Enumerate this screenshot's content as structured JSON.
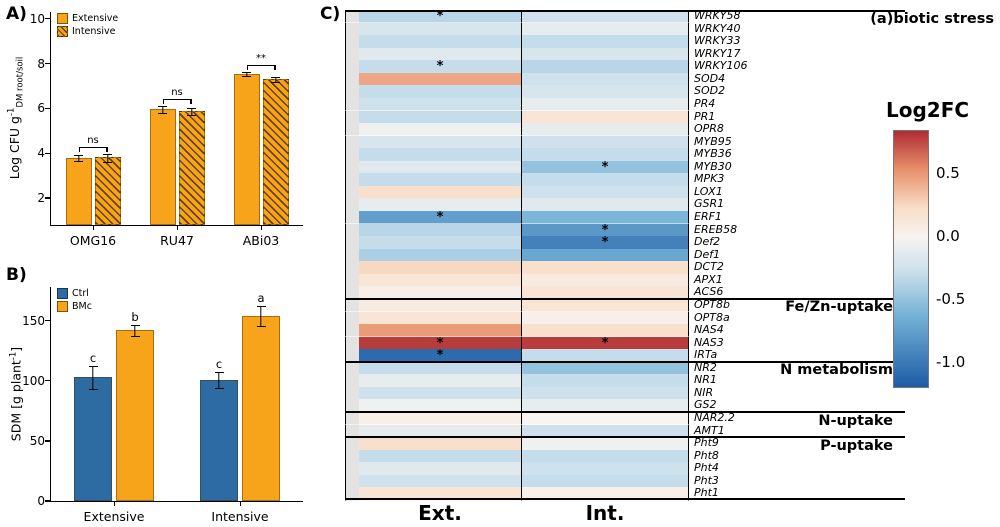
{
  "chart_data": [
    {
      "id": "A",
      "type": "bar",
      "panel_label": "A)",
      "ylabel": {
        "pre": "Log CFU g",
        "sup": "-1",
        "sub": "DM root/soil",
        "post": ""
      },
      "categories": [
        "OMG16",
        "RU47",
        "ABi03"
      ],
      "series": [
        {
          "name": "Extensive",
          "style": "solid",
          "color": "#F8A41B",
          "values": [
            3.8,
            5.98,
            7.55
          ],
          "errors": [
            0.12,
            0.12,
            0.07
          ]
        },
        {
          "name": "Intensive",
          "style": "hatched",
          "color": "#F8A41B",
          "values": [
            3.82,
            5.9,
            7.3
          ],
          "errors": [
            0.15,
            0.14,
            0.1
          ]
        }
      ],
      "significance": [
        "ns",
        "ns",
        "**"
      ],
      "ylim": [
        0.8,
        10.3
      ],
      "yticks": [
        10,
        8,
        6,
        4,
        2
      ]
    },
    {
      "id": "B",
      "type": "bar",
      "panel_label": "B)",
      "ylabel": {
        "pre": "SDM [g plant",
        "sup": "-1",
        "sub": "",
        "post": "]"
      },
      "categories": [
        "Extensive",
        "Intensive"
      ],
      "series": [
        {
          "name": "Ctrl",
          "style": "solid",
          "color": "#2D6CA2",
          "values": [
            103,
            101
          ],
          "errors": [
            9,
            6
          ],
          "letters": [
            "c",
            "c"
          ]
        },
        {
          "name": "BMc",
          "style": "solid",
          "color": "#F8A41B",
          "values": [
            142,
            154
          ],
          "errors": [
            4,
            8
          ],
          "letters": [
            "b",
            "a"
          ]
        }
      ],
      "significance": [],
      "ylim": [
        0,
        178
      ],
      "yticks": [
        0,
        50,
        100,
        150
      ]
    },
    {
      "id": "C",
      "type": "heatmap",
      "panel_label": "C)",
      "columns": [
        "Ext.",
        "Int."
      ],
      "colorbar": {
        "title": "Log2FC",
        "ticks": [
          "0.5",
          "0.0",
          "-0.5",
          "-1.0"
        ],
        "vmin": -1.2,
        "vmax": 0.85
      },
      "sections": [
        {
          "name": "(a)biotic stress",
          "genes": [
            {
              "gene": "WRKY58",
              "ext": -0.35,
              "int": -0.25,
              "sx": true
            },
            {
              "gene": "WRKY40",
              "ext": -0.2,
              "int": -0.1
            },
            {
              "gene": "WRKY33",
              "ext": -0.3,
              "int": -0.3
            },
            {
              "gene": "WRKY17",
              "ext": -0.15,
              "int": -0.2
            },
            {
              "gene": "WRKY106",
              "ext": -0.3,
              "int": -0.35,
              "sx": true
            },
            {
              "gene": "SOD4",
              "ext": 0.45,
              "int": -0.25
            },
            {
              "gene": "SOD2",
              "ext": -0.3,
              "int": -0.2
            },
            {
              "gene": "PR4",
              "ext": -0.25,
              "int": -0.1
            },
            {
              "gene": "PR1",
              "ext": -0.3,
              "int": 0.15
            },
            {
              "gene": "OPR8",
              "ext": -0.05,
              "int": -0.1
            },
            {
              "gene": "MYB95",
              "ext": -0.2,
              "int": -0.25
            },
            {
              "gene": "MYB36",
              "ext": -0.3,
              "int": -0.3
            },
            {
              "gene": "MYB30",
              "ext": -0.15,
              "int": -0.5,
              "si": true
            },
            {
              "gene": "MPK3",
              "ext": -0.3,
              "int": -0.3
            },
            {
              "gene": "LOX1",
              "ext": 0.2,
              "int": -0.25
            },
            {
              "gene": "GSR1",
              "ext": -0.1,
              "int": -0.15
            },
            {
              "gene": "ERF1",
              "ext": -0.75,
              "int": -0.6,
              "sx": true
            },
            {
              "gene": "EREB58",
              "ext": -0.35,
              "int": -0.8,
              "si": true
            },
            {
              "gene": "Def2",
              "ext": -0.3,
              "int": -0.95,
              "si": true
            },
            {
              "gene": "Def1",
              "ext": -0.4,
              "int": -0.7
            },
            {
              "gene": "DCT2",
              "ext": 0.25,
              "int": 0.2
            },
            {
              "gene": "APX1",
              "ext": 0.15,
              "int": 0.1
            },
            {
              "gene": "ACS6",
              "ext": 0.05,
              "int": 0.15
            }
          ]
        },
        {
          "name": "Fe/Zn-uptake",
          "genes": [
            {
              "gene": "OPT8b",
              "ext": 0.1,
              "int": 0.15
            },
            {
              "gene": "OPT8a",
              "ext": 0.15,
              "int": 0.05
            },
            {
              "gene": "NAS4",
              "ext": 0.5,
              "int": 0.2
            },
            {
              "gene": "NAS3",
              "ext": 0.8,
              "int": 0.8,
              "sx": true,
              "si": true
            },
            {
              "gene": "IRTa",
              "ext": -1.1,
              "int": -0.3,
              "sx": true
            }
          ]
        },
        {
          "name": "N metabolism",
          "genes": [
            {
              "gene": "NR2",
              "ext": -0.3,
              "int": -0.5
            },
            {
              "gene": "NR1",
              "ext": -0.1,
              "int": -0.3
            },
            {
              "gene": "NIR",
              "ext": -0.25,
              "int": -0.25
            },
            {
              "gene": "GS2",
              "ext": -0.05,
              "int": -0.1
            }
          ]
        },
        {
          "name": "N-uptake",
          "genes": [
            {
              "gene": "NAR2.2",
              "ext": 0.05,
              "int": 0.0
            },
            {
              "gene": "AMT1",
              "ext": -0.1,
              "int": -0.25
            }
          ]
        },
        {
          "name": "P-uptake",
          "genes": [
            {
              "gene": "Pht9",
              "ext": 0.2,
              "int": -0.05
            },
            {
              "gene": "Pht8",
              "ext": -0.3,
              "int": -0.3
            },
            {
              "gene": "Pht4",
              "ext": -0.15,
              "int": -0.25
            },
            {
              "gene": "Pht3",
              "ext": -0.25,
              "int": -0.3
            },
            {
              "gene": "Pht1",
              "ext": 0.15,
              "int": 0.05
            }
          ]
        }
      ]
    }
  ]
}
